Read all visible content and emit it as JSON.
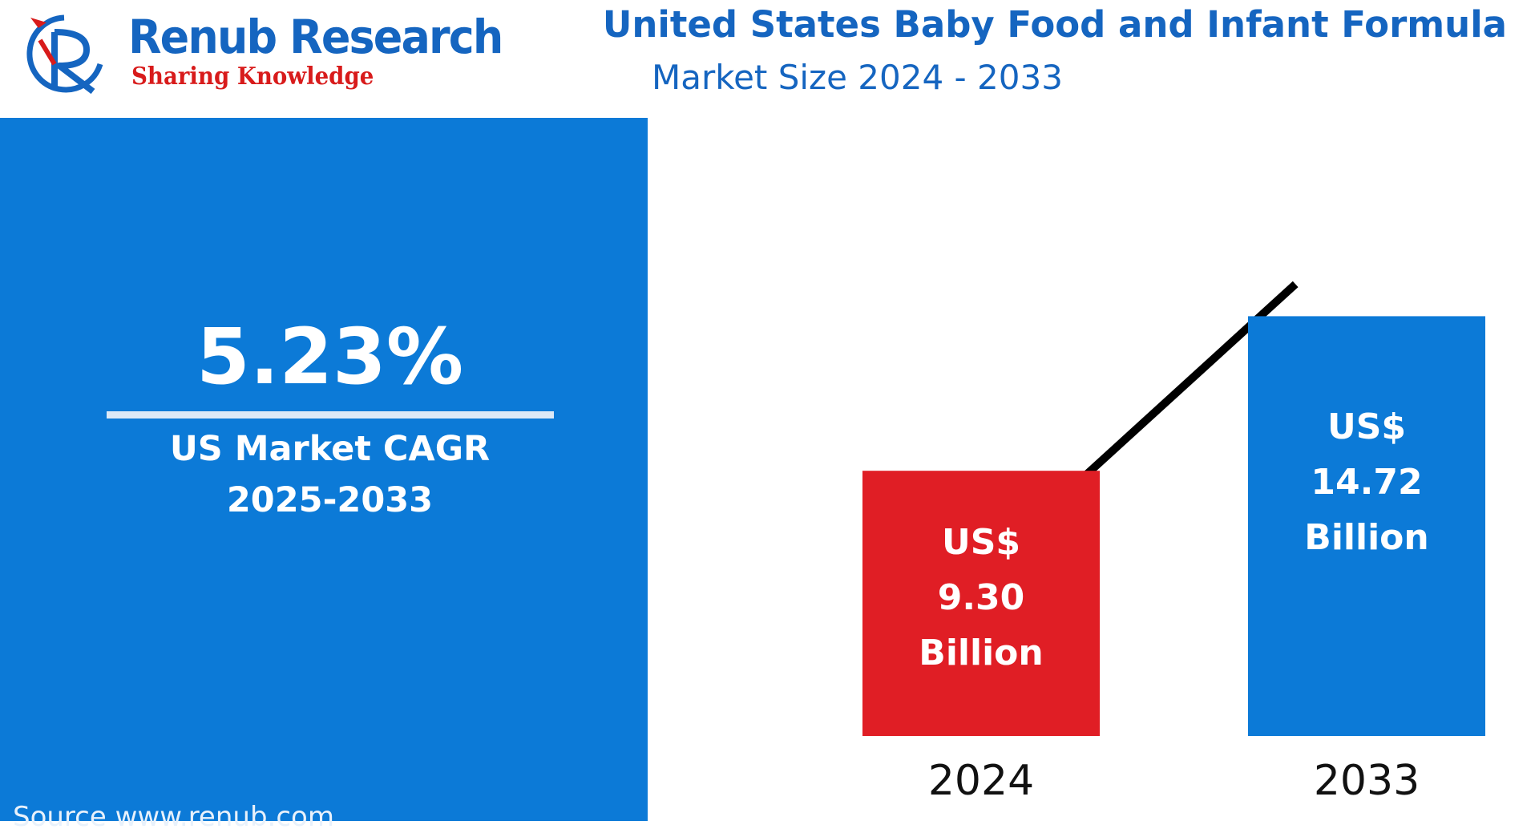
{
  "brand": {
    "name": "Renub Research",
    "tagline": "Sharing Knowledge",
    "logo_icon": "renub-r-logo-icon"
  },
  "title": "United States Baby Food and Infant Formula",
  "subtitle": "Market Size 2024 - 2033",
  "cagr": {
    "value": "5.23%",
    "label_line1": "US Market CAGR",
    "label_line2": "2025-2033"
  },
  "source": "Source  www.renub.com",
  "colors": {
    "brand_blue": "#1565c0",
    "panel_blue": "#0c7ad7",
    "bar_2024": "#e01e25",
    "bar_2033": "#0c7ad7",
    "trend_line": "#000000",
    "tagline_red": "#d81b1b"
  },
  "chart_data": {
    "type": "bar",
    "categories": [
      "2024",
      "2033"
    ],
    "values": [
      9.3,
      14.72
    ],
    "unit": "US$ Billion",
    "data_labels": [
      [
        "US$",
        "9.30",
        "Billion"
      ],
      [
        "US$",
        "14.72",
        "Billion"
      ]
    ],
    "bar_colors": [
      "#e01e25",
      "#0c7ad7"
    ],
    "trend_line": true,
    "grid": false
  }
}
